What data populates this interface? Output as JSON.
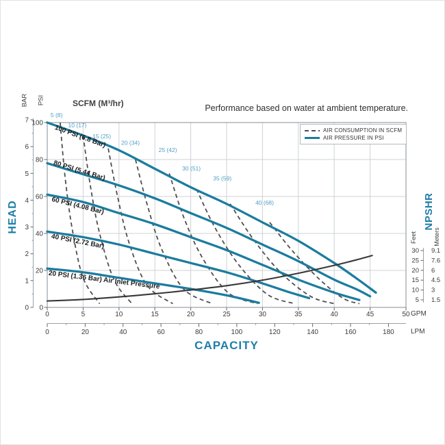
{
  "title": "Performance based on water at ambient temperature.",
  "scfm_header": "SCFM (M³/hr)",
  "legend": {
    "consumption_label": "AIR CONSUMPTION IN SCFM",
    "pressure_label": "AIR PRESSURE IN PSI"
  },
  "colors": {
    "pressure_curve": "#1b7c9e",
    "consumption_curve": "#4d4d4d",
    "npshr_curve": "#383838",
    "accent_text": "#1e7ea8",
    "consumption_label_text": "#4f9fc6",
    "grid": "#cdd2d6",
    "axis": "#9aa1a7",
    "tick_text": "#3a3a3a"
  },
  "axes": {
    "left_title": "HEAD",
    "bottom_title": "CAPACITY",
    "right_title": "NPSHR",
    "bar_unit": "BAR",
    "psi_unit": "PSI",
    "gpm_unit": "GPM",
    "lpm_unit": "LPM",
    "feet_unit": "Feet",
    "meters_unit": "Meters"
  },
  "chart_data": {
    "type": "line",
    "title": "Performance based on water at ambient temperature.",
    "x_axis": {
      "label": "CAPACITY",
      "primary_unit": "GPM",
      "primary_ticks": [
        0,
        5,
        10,
        15,
        20,
        25,
        30,
        35,
        40,
        45,
        50
      ],
      "primary_range": [
        0,
        50
      ],
      "secondary_unit": "LPM",
      "secondary_ticks": [
        0,
        20,
        40,
        60,
        80,
        100,
        120,
        140,
        160,
        180
      ]
    },
    "y_axis": {
      "label": "HEAD",
      "primary_unit": "PSI",
      "primary_ticks": [
        0,
        20,
        40,
        60,
        80,
        100
      ],
      "primary_range": [
        0,
        100
      ],
      "secondary_unit": "BAR",
      "secondary_ticks": [
        0,
        1,
        2,
        3,
        4,
        5,
        6,
        7
      ]
    },
    "right_axis": {
      "label": "NPSHR",
      "rows": [
        {
          "feet": 30,
          "meters": "9.1"
        },
        {
          "feet": 25,
          "meters": "7.6"
        },
        {
          "feet": 20,
          "meters": "6"
        },
        {
          "feet": 15,
          "meters": "4.5"
        },
        {
          "feet": 10,
          "meters": "3"
        },
        {
          "feet": 5,
          "meters": "1.5"
        }
      ]
    },
    "grid": true,
    "legend_position": "top-right-inside",
    "pressure_curves": [
      {
        "name": "100 PSI (6.8 Bar)",
        "air_psi": 100,
        "points": [
          [
            0,
            100
          ],
          [
            5,
            93
          ],
          [
            10,
            85
          ],
          [
            15,
            75
          ],
          [
            20,
            65
          ],
          [
            25,
            56
          ],
          [
            30,
            46
          ],
          [
            35,
            36
          ],
          [
            40,
            24
          ],
          [
            43,
            16
          ],
          [
            45.8,
            8
          ]
        ],
        "label_pos": [
          4.5,
          91.5
        ],
        "label_angle": 20
      },
      {
        "name": "80 PSI (5.44 Bar)",
        "air_psi": 80,
        "points": [
          [
            0,
            78
          ],
          [
            5,
            72
          ],
          [
            10,
            66
          ],
          [
            15,
            59
          ],
          [
            20,
            51
          ],
          [
            25,
            43
          ],
          [
            30,
            34
          ],
          [
            35,
            25
          ],
          [
            40,
            15
          ],
          [
            43,
            10
          ],
          [
            45,
            6
          ]
        ],
        "label_pos": [
          4.4,
          73
        ],
        "label_angle": 17
      },
      {
        "name": "60 PSI (4.08 Bar)",
        "air_psi": 60,
        "points": [
          [
            0,
            61
          ],
          [
            5,
            57
          ],
          [
            10,
            51
          ],
          [
            15,
            45
          ],
          [
            20,
            38
          ],
          [
            25,
            31
          ],
          [
            30,
            23
          ],
          [
            35,
            15
          ],
          [
            40,
            8
          ],
          [
            43.5,
            4
          ]
        ],
        "label_pos": [
          4.2,
          54
        ],
        "label_angle": 14
      },
      {
        "name": "40 PSI (2.72 Bar)",
        "air_psi": 40,
        "points": [
          [
            0,
            41
          ],
          [
            5,
            38
          ],
          [
            10,
            34
          ],
          [
            15,
            29
          ],
          [
            20,
            24
          ],
          [
            25,
            19
          ],
          [
            30,
            13
          ],
          [
            33.5,
            8.5
          ],
          [
            36.5,
            5
          ]
        ],
        "label_pos": [
          4.2,
          34.7
        ],
        "label_angle": 11
      },
      {
        "name": "20 PSI (1.36 Bar) Air Inlet Pressure",
        "air_psi": 20,
        "points": [
          [
            0,
            21
          ],
          [
            5,
            19
          ],
          [
            10,
            16
          ],
          [
            15,
            13
          ],
          [
            20,
            10
          ],
          [
            25,
            6.5
          ],
          [
            29.5,
            2.5
          ]
        ],
        "label_pos": [
          7.9,
          13.8
        ],
        "label_angle": 7
      }
    ],
    "consumption_curves": [
      {
        "label": "5 (8)",
        "scfm": 5,
        "m3hr": 8,
        "points": [
          [
            1.8,
            100
          ],
          [
            2.5,
            70
          ],
          [
            3.5,
            42
          ],
          [
            5,
            16
          ],
          [
            7.3,
            2
          ]
        ],
        "label_pos": [
          1.3,
          103
        ]
      },
      {
        "label": "10 (17)",
        "scfm": 10,
        "m3hr": 17,
        "points": [
          [
            5,
            93
          ],
          [
            6,
            66
          ],
          [
            7.3,
            40
          ],
          [
            9.3,
            15
          ],
          [
            11.8,
            2
          ]
        ],
        "label_pos": [
          4.2,
          97.5
        ]
      },
      {
        "label": "15 (25)",
        "scfm": 15,
        "m3hr": 25,
        "points": [
          [
            8.5,
            86
          ],
          [
            9.8,
            60
          ],
          [
            11.4,
            35
          ],
          [
            13.9,
            12
          ],
          [
            17.5,
            2
          ]
        ],
        "label_pos": [
          7.6,
          91.5
        ]
      },
      {
        "label": "20 (34)",
        "scfm": 20,
        "m3hr": 34,
        "points": [
          [
            12.3,
            80
          ],
          [
            13.9,
            56
          ],
          [
            15.9,
            32
          ],
          [
            19,
            10
          ],
          [
            23,
            2
          ]
        ],
        "label_pos": [
          11.6,
          88
        ]
      },
      {
        "label": "25 (42)",
        "scfm": 25,
        "m3hr": 42,
        "points": [
          [
            17,
            72.5
          ],
          [
            19,
            49
          ],
          [
            21.6,
            27
          ],
          [
            25.2,
            8
          ],
          [
            29.3,
            2
          ]
        ],
        "label_pos": [
          16.8,
          84
        ]
      },
      {
        "label": "30 (51)",
        "scfm": 30,
        "m3hr": 51,
        "points": [
          [
            20.8,
            64
          ],
          [
            23.4,
            43
          ],
          [
            26.7,
            23
          ],
          [
            30.7,
            7
          ],
          [
            34.5,
            2
          ]
        ],
        "label_pos": [
          20.1,
          74
        ]
      },
      {
        "label": "35 (59)",
        "scfm": 35,
        "m3hr": 59,
        "points": [
          [
            25.5,
            56
          ],
          [
            28.7,
            37
          ],
          [
            32.5,
            19
          ],
          [
            36.7,
            6
          ],
          [
            40,
            2
          ]
        ],
        "label_pos": [
          24.4,
          68.7
        ]
      },
      {
        "label": "40 (68)",
        "scfm": 40,
        "m3hr": 68,
        "points": [
          [
            31,
            46
          ],
          [
            34.3,
            30
          ],
          [
            38,
            15
          ],
          [
            41.2,
            5
          ],
          [
            43.5,
            2
          ]
        ],
        "label_pos": [
          30.3,
          55.6
        ]
      }
    ],
    "npshr_curve": {
      "units": [
        "GPM",
        "Feet"
      ],
      "points": [
        [
          0,
          4.4
        ],
        [
          5,
          5.2
        ],
        [
          10,
          6.5
        ],
        [
          15,
          8.1
        ],
        [
          20,
          10
        ],
        [
          25,
          12.2
        ],
        [
          30,
          15
        ],
        [
          35,
          18.5
        ],
        [
          40,
          22.5
        ],
        [
          43,
          25.2
        ],
        [
          45.3,
          27.5
        ]
      ]
    }
  }
}
